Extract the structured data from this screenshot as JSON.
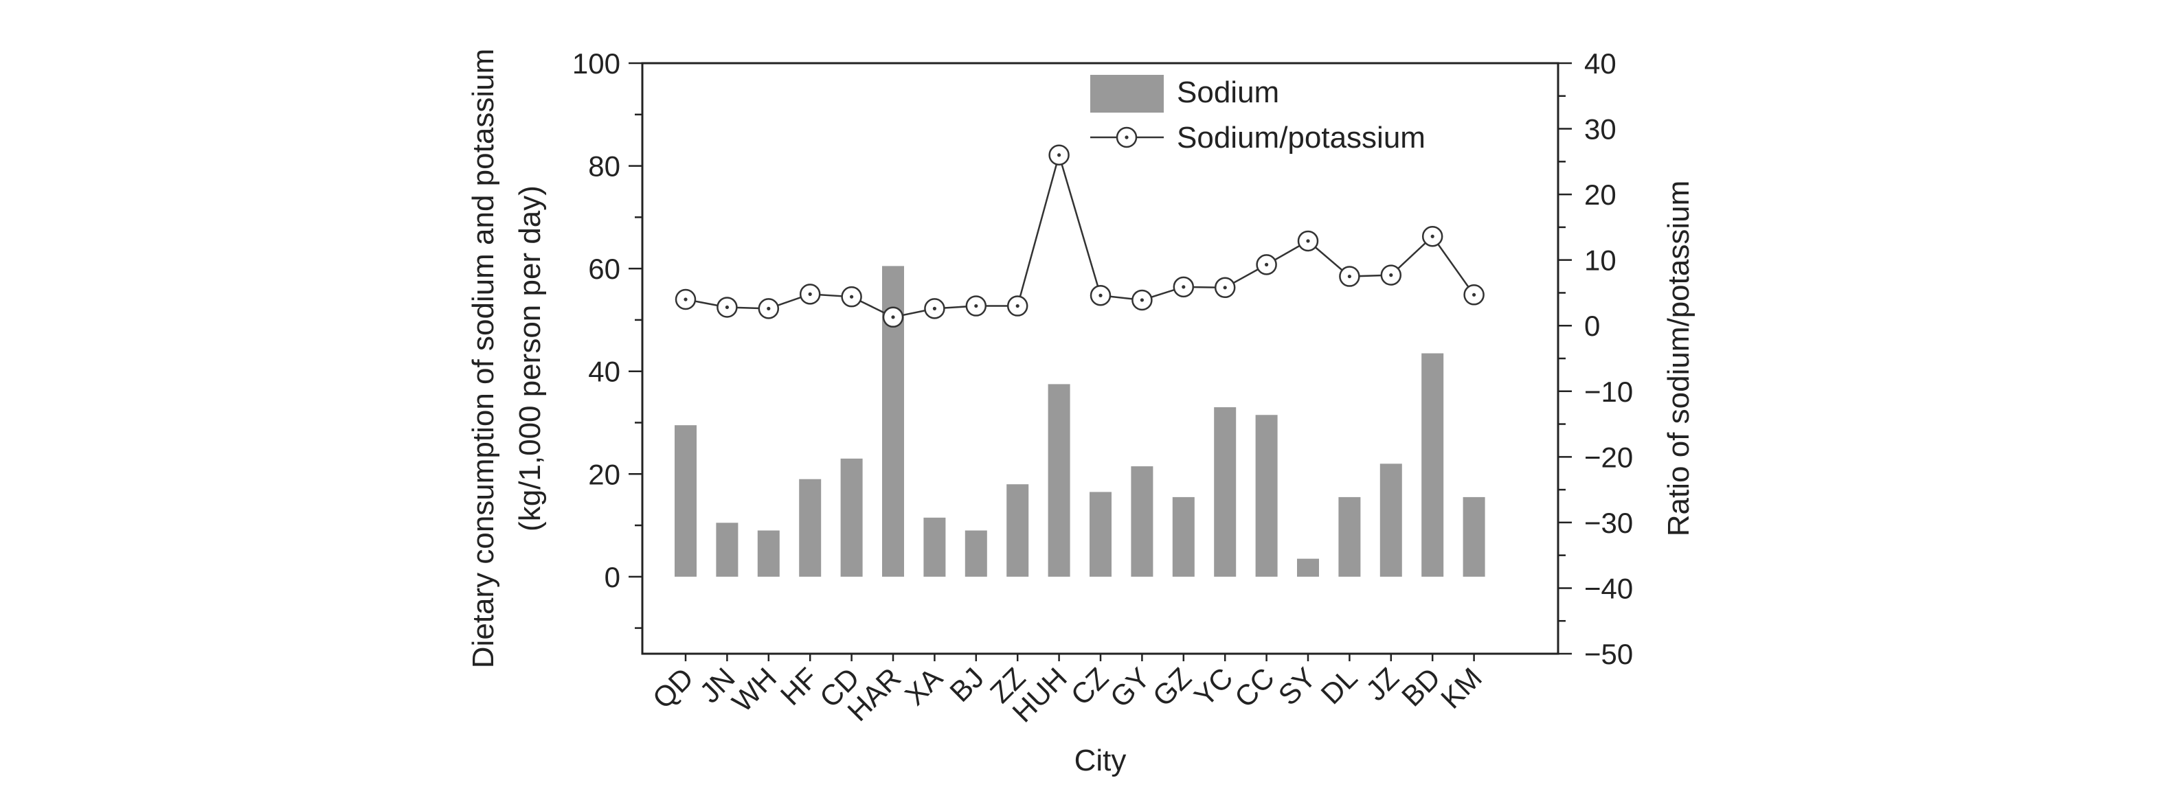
{
  "chart_data": {
    "type": "bar+line",
    "categories": [
      "QD",
      "JN",
      "WH",
      "HF",
      "CD",
      "HAR",
      "XA",
      "BJ",
      "ZZ",
      "HUH",
      "CZ",
      "GY",
      "GZ",
      "YC",
      "CC",
      "SY",
      "DL",
      "JZ",
      "BD",
      "KM"
    ],
    "series": [
      {
        "name": "Sodium",
        "type": "bar",
        "axis": "left",
        "values": [
          29.5,
          10.5,
          9.0,
          19.0,
          23.0,
          60.5,
          11.5,
          9.0,
          18.0,
          37.5,
          16.5,
          21.5,
          15.5,
          33.0,
          31.5,
          3.5,
          15.5,
          22.0,
          43.5,
          15.5
        ]
      },
      {
        "name": "Sodium/potassium",
        "type": "line",
        "axis": "right",
        "values": [
          4.0,
          2.8,
          2.6,
          4.8,
          4.4,
          1.3,
          2.6,
          3.0,
          3.0,
          26.0,
          4.6,
          3.9,
          5.9,
          5.8,
          9.3,
          12.9,
          7.5,
          7.7,
          13.6,
          4.7
        ]
      }
    ],
    "xlabel": "City",
    "ylabel_left": [
      "Dietary consumption of sodium and potassium",
      "(kg/1,000 person per day)"
    ],
    "ylabel_right": "Ratio of sodium/potassium",
    "ylim_left": [
      -15,
      100
    ],
    "ylim_right": [
      -50,
      40
    ],
    "yticks_left": [
      "0",
      "20",
      "40",
      "60",
      "80",
      "100"
    ],
    "yticks_right": [
      "−50",
      "−40",
      "−30",
      "−20",
      "−10",
      "0",
      "10",
      "20",
      "30",
      "40"
    ],
    "legend": {
      "position": "top-center",
      "entries": [
        "Sodium",
        "Sodium/potassium"
      ]
    },
    "colors": {
      "bar": "#999999",
      "line": "#333333",
      "axis": "#222222",
      "marker_fill": "#ffffff"
    },
    "grid": false
  }
}
